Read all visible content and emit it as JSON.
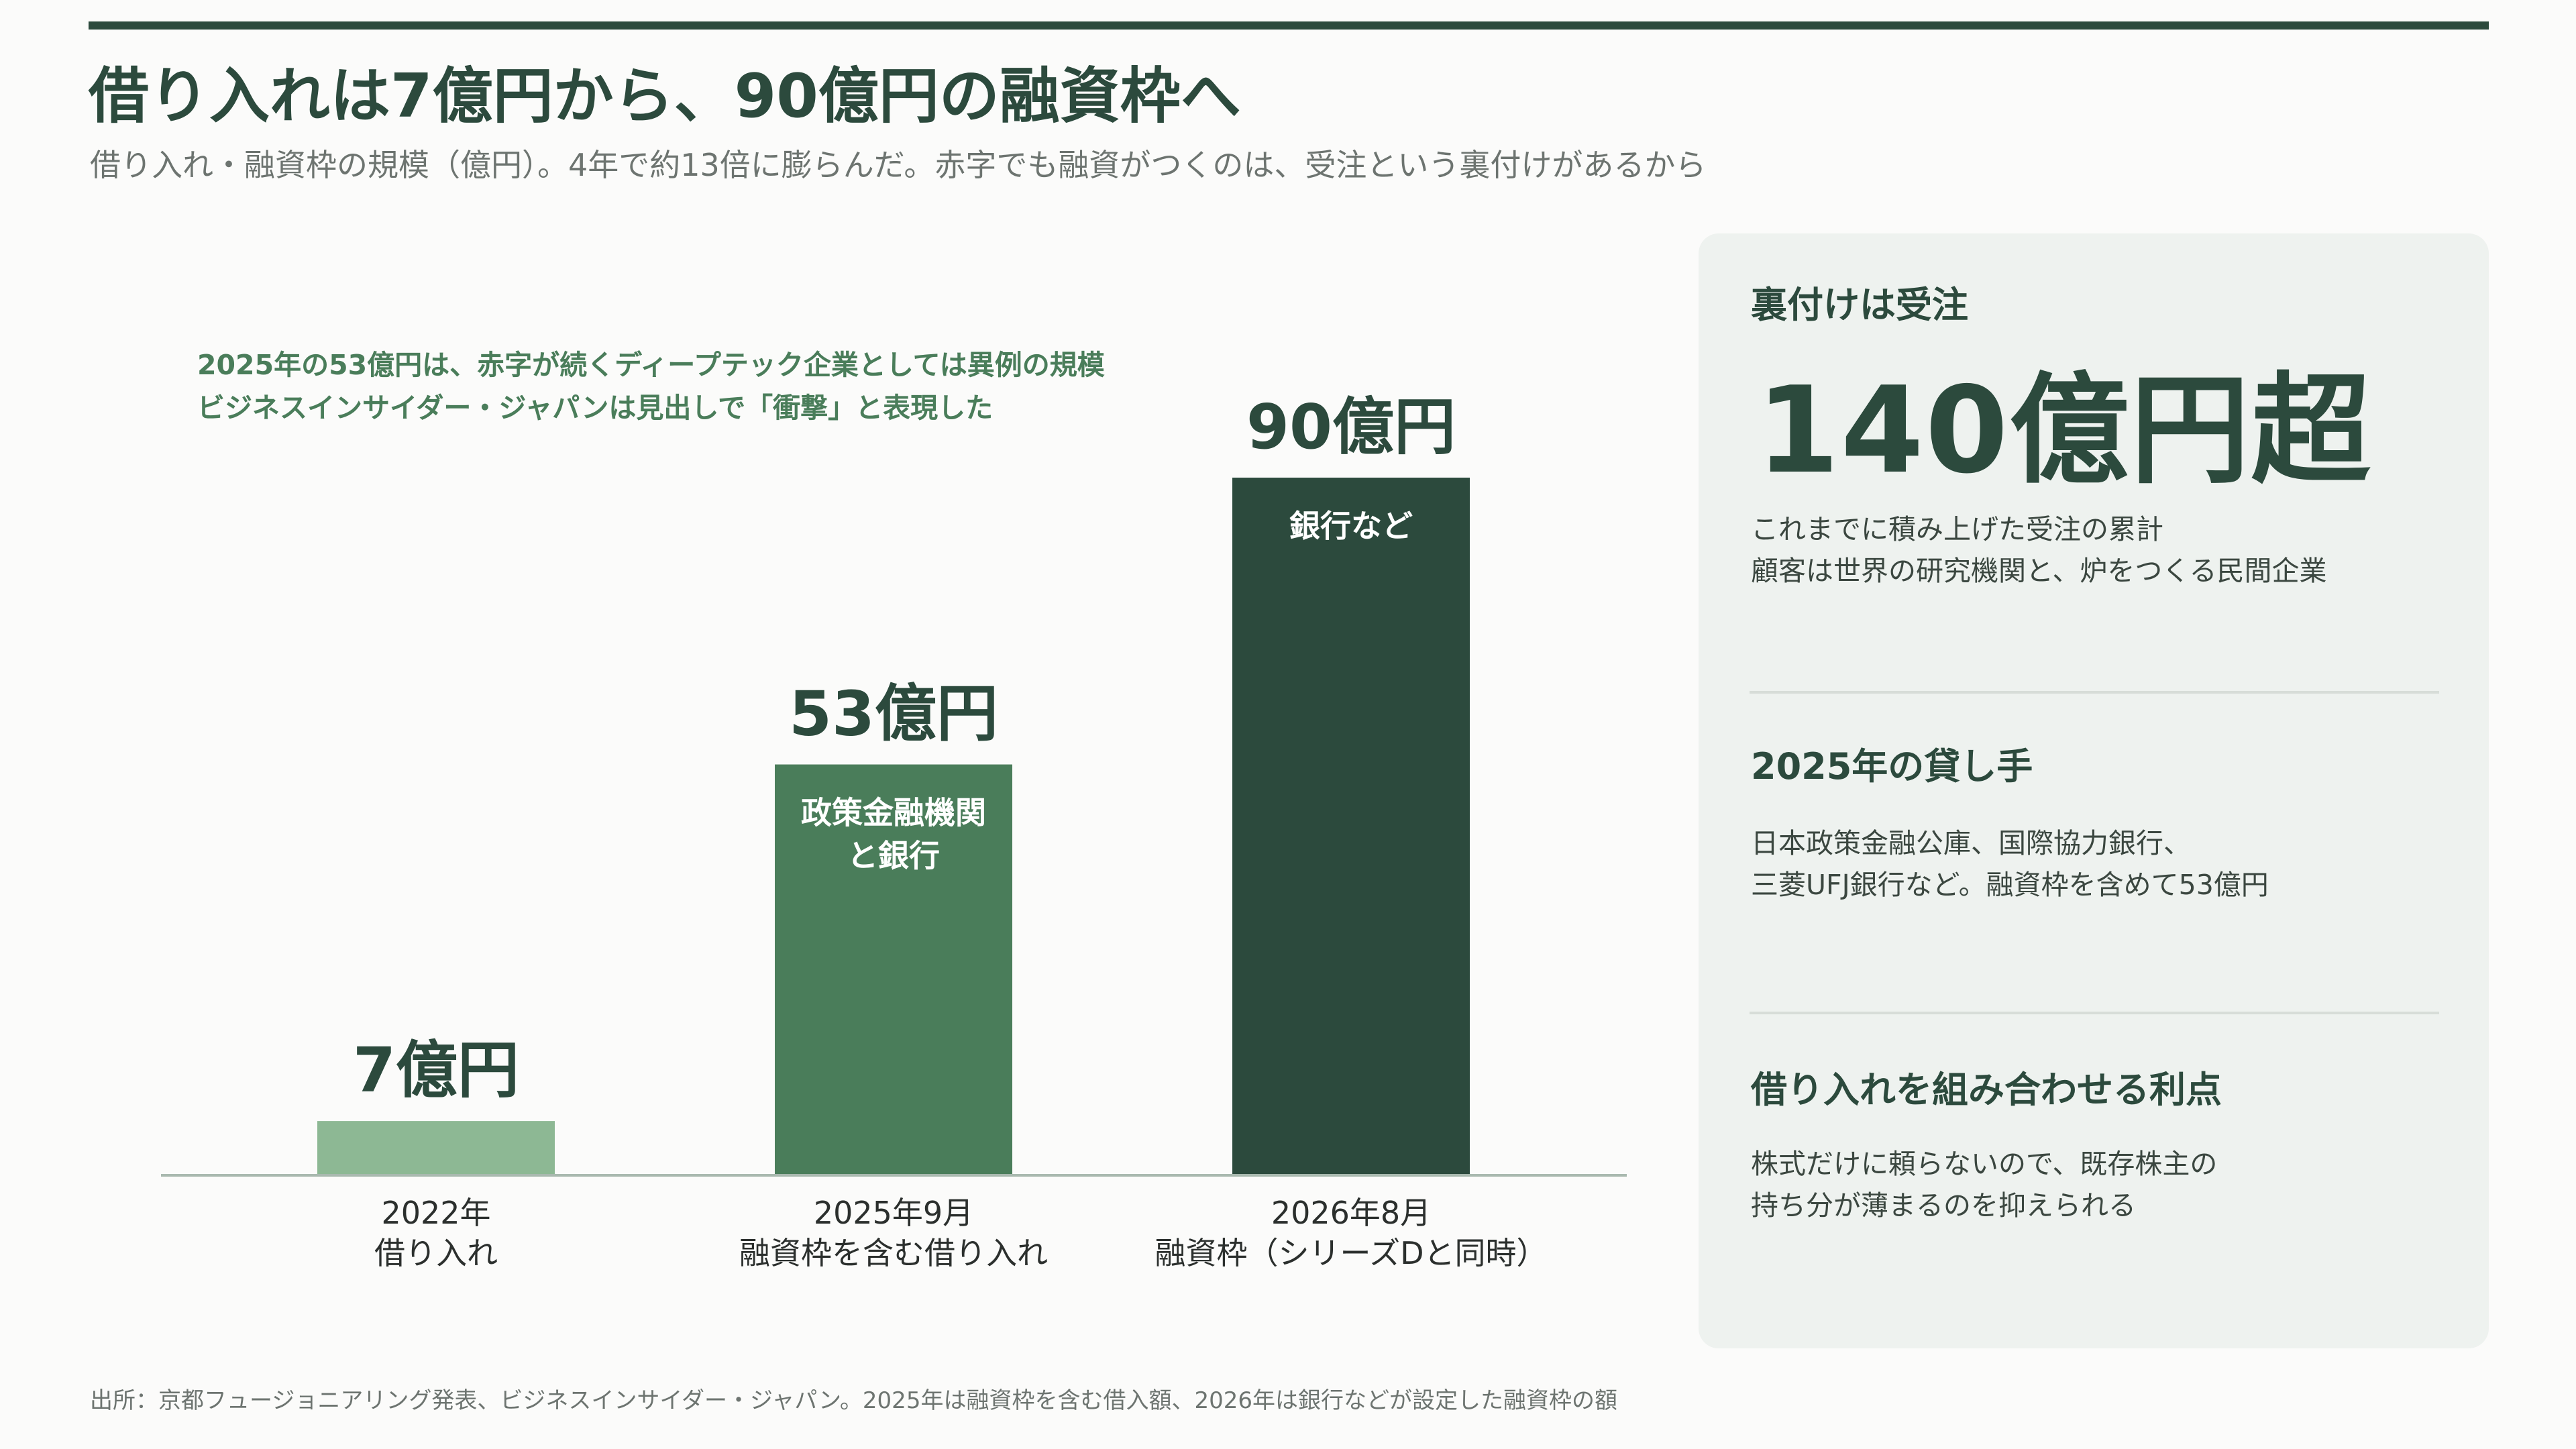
{
  "title": "借り入れは7億円から、90億円の融資枠へ",
  "subtitle": "借り入れ・融資枠の規模（億円）。4年で約13倍に膨らんだ。赤字でも融資がつくのは、受注という裏付けがあるから",
  "annotation": {
    "line1": "2025年の53億円は、赤字が続くディープテック企業としては異例の規模",
    "line2": "ビジネスインサイダー・ジャパンは見出しで「衝撃」と表現した"
  },
  "chart_data": {
    "type": "bar",
    "categories": [
      [
        "2022年",
        "借り入れ"
      ],
      [
        "2025年9月",
        "融資枠を含む借り入れ"
      ],
      [
        "2026年8月",
        "融資枠（シリーズDと同時）"
      ]
    ],
    "values": [
      7,
      53,
      90
    ],
    "value_labels": [
      "7億円",
      "53億円",
      "90億円"
    ],
    "inner_labels": [
      [],
      [
        "政策金融機関",
        "と銀行"
      ],
      [
        "銀行など"
      ]
    ],
    "colors": [
      "#8db894",
      "#4a7d5a",
      "#2c4a3d"
    ],
    "ylim": [
      0,
      90
    ],
    "grid": false,
    "legend": "none"
  },
  "panel": {
    "section1": {
      "label": "裏付けは受注",
      "big": "140億円超",
      "line1": "これまでに積み上げた受注の累計",
      "line2": "顧客は世界の研究機関と、炉をつくる民間企業"
    },
    "section2": {
      "label": "2025年の貸し手",
      "line1": "日本政策金融公庫、国際協力銀行、",
      "line2": "三菱UFJ銀行など。融資枠を含めて53億円"
    },
    "section3": {
      "label": "借り入れを組み合わせる利点",
      "line1": "株式だけに頼らないので、既存株主の",
      "line2": "持ち分が薄まるのを抑えられる"
    }
  },
  "source": "出所：京都フュージョニアリング発表、ビジネスインサイダー・ジャパン。2025年は融資枠を含む借入額、2026年は銀行などが設定した融資枠の額"
}
